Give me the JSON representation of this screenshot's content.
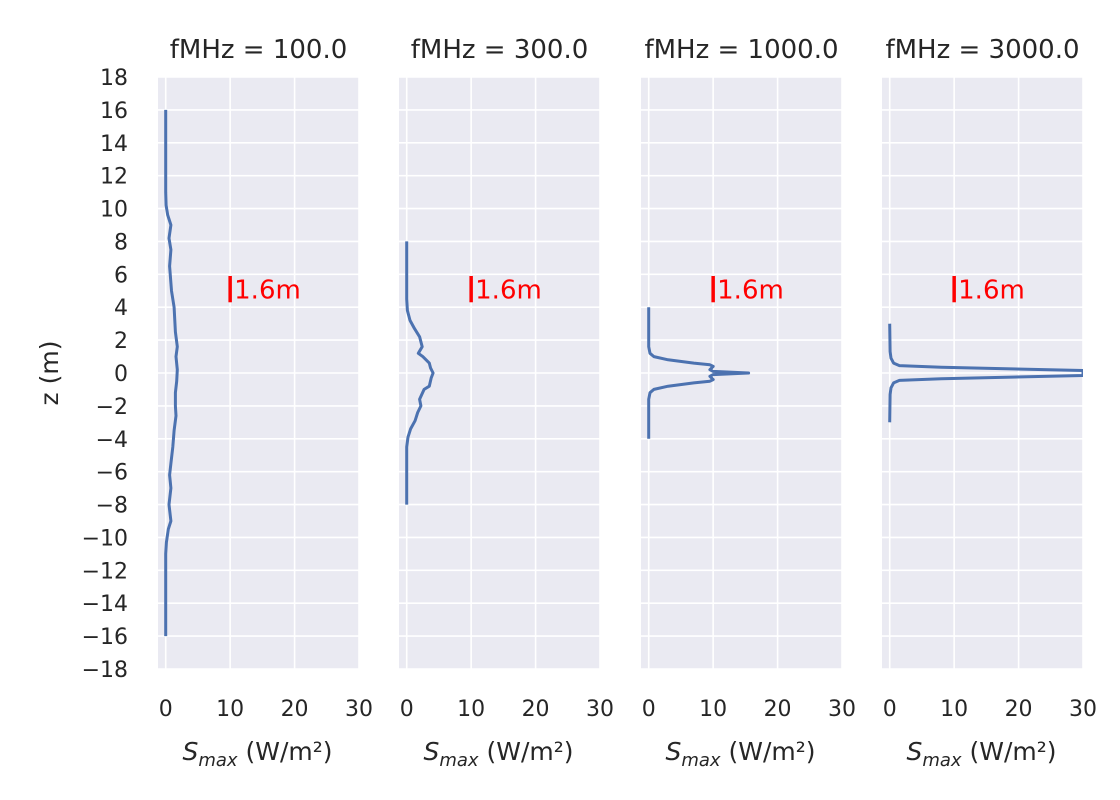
{
  "chart_data": {
    "type": "line",
    "ylabel": "z (m)",
    "xlabel_main": "S",
    "xlabel_sub": "max",
    "xlabel_unit": " (W/m²)",
    "ylim": [
      -18,
      18
    ],
    "yticks": [
      18,
      16,
      14,
      12,
      10,
      8,
      6,
      4,
      2,
      0,
      -2,
      -4,
      -6,
      -8,
      -10,
      -12,
      -14,
      -16,
      -18
    ],
    "ytick_labels": [
      "18",
      "16",
      "14",
      "12",
      "10",
      "8",
      "6",
      "4",
      "2",
      "0",
      "−2",
      "−4",
      "−6",
      "−8",
      "−10",
      "−12",
      "−14",
      "−16",
      "−18"
    ],
    "xlim": [
      -1.2,
      30
    ],
    "xticks": [
      0,
      10,
      20,
      30
    ],
    "xtick_labels": [
      "0",
      "10",
      "20",
      "30"
    ],
    "grid": true,
    "line_color": "#4C72B0",
    "background_color": "#EAEAF2",
    "annotation_color": "#FF0000",
    "panels": [
      {
        "title": "fMHz = 100.0",
        "annotation": {
          "label": "1.6m",
          "x": 10,
          "z_bottom": 4.3,
          "z_top": 5.9
        },
        "series": {
          "x": [
            0.0,
            0.0,
            0.05,
            0.3,
            0.8,
            0.5,
            0.8,
            0.6,
            0.9,
            1.3,
            1.5,
            1.8,
            1.6,
            1.8,
            1.7,
            1.5,
            1.5,
            1.6,
            1.3,
            1.1,
            0.8,
            0.6,
            0.8,
            0.5,
            0.8,
            0.4,
            0.1,
            0.0,
            0.0,
            0.0
          ],
          "z": [
            16,
            11,
            10.2,
            9.6,
            9,
            8.2,
            7.5,
            6.5,
            5,
            4,
            2.5,
            1.6,
            1,
            0.2,
            -0.5,
            -1.2,
            -2,
            -2.6,
            -3.5,
            -4.5,
            -5.5,
            -6.2,
            -7,
            -8,
            -9,
            -9.5,
            -10.3,
            -11,
            -14,
            -16
          ]
        }
      },
      {
        "title": "fMHz = 300.0",
        "annotation": {
          "label": "1.6m",
          "x": 10,
          "z_bottom": 4.3,
          "z_top": 5.9
        },
        "series": {
          "x": [
            0.0,
            0.0,
            0.1,
            0.5,
            1.2,
            2.0,
            2.4,
            1.8,
            2.5,
            3.5,
            3.7,
            4.1,
            3.8,
            3.5,
            2.7,
            2.0,
            2.2,
            1.7,
            1.3,
            0.6,
            0.2,
            0.0,
            0.0
          ],
          "z": [
            8,
            4.5,
            3.8,
            3.2,
            2.7,
            2.2,
            1.6,
            1.2,
            1.0,
            0.6,
            0.3,
            0,
            -0.3,
            -0.8,
            -1.0,
            -1.6,
            -2.0,
            -2.4,
            -2.9,
            -3.4,
            -3.9,
            -4.5,
            -8
          ]
        }
      },
      {
        "title": "fMHz = 1000.0",
        "annotation": {
          "label": "1.6m",
          "x": 10,
          "z_bottom": 4.3,
          "z_top": 5.9
        },
        "series": {
          "x": [
            0.0,
            0.0,
            0.2,
            0.8,
            3.0,
            7.0,
            9.5,
            10.0,
            9.5,
            10.0,
            15.5,
            10.0,
            9.5,
            10.0,
            9.5,
            7.0,
            3.0,
            0.8,
            0.2,
            0.0,
            0.0
          ],
          "z": [
            4,
            1.6,
            1.2,
            1.0,
            0.8,
            0.6,
            0.5,
            0.4,
            0.2,
            0.1,
            0,
            -0.1,
            -0.2,
            -0.4,
            -0.5,
            -0.6,
            -0.8,
            -1.0,
            -1.2,
            -1.6,
            -4
          ]
        }
      },
      {
        "title": "fMHz = 3000.0",
        "annotation": {
          "label": "1.6m",
          "x": 10,
          "z_bottom": 4.3,
          "z_top": 5.9
        },
        "series": {
          "x": [
            0.0,
            0.05,
            0.2,
            0.6,
            1.5,
            8.0,
            30.0,
            30.0,
            8.0,
            1.5,
            0.6,
            0.2,
            0.05,
            0.0
          ],
          "z": [
            3,
            1.3,
            0.9,
            0.6,
            0.45,
            0.35,
            0.15,
            -0.15,
            -0.35,
            -0.45,
            -0.6,
            -0.9,
            -1.3,
            -3
          ]
        }
      }
    ]
  }
}
